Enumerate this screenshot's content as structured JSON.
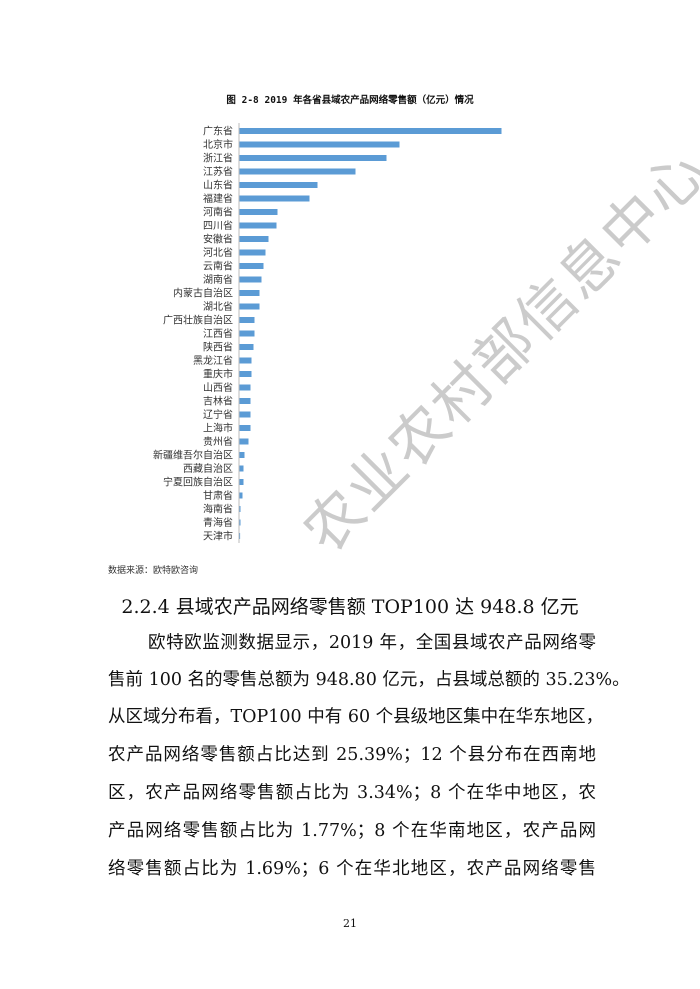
{
  "chart_data": {
    "type": "bar",
    "orientation": "horizontal",
    "title": "图 2-8 2019 年各省县域农产品网络零售额（亿元）情况",
    "categories": [
      "广东省",
      "北京市",
      "浙江省",
      "江苏省",
      "山东省",
      "福建省",
      "河南省",
      "四川省",
      "安徽省",
      "河北省",
      "云南省",
      "湖南省",
      "内蒙古自治区",
      "湖北省",
      "广西壮族自治区",
      "江西省",
      "陕西省",
      "黑龙江省",
      "重庆市",
      "山西省",
      "吉林省",
      "辽宁省",
      "上海市",
      "贵州省",
      "新疆维吾尔自治区",
      "西藏自治区",
      "宁夏回族自治区",
      "甘肃省",
      "海南省",
      "青海省",
      "天津市"
    ],
    "values": [
      262,
      160,
      147,
      116,
      78,
      70,
      38,
      37,
      29,
      26,
      24,
      22,
      20,
      20,
      15,
      15,
      14,
      12,
      12,
      11,
      11,
      11,
      11,
      9,
      5,
      4,
      4,
      3,
      1,
      1,
      0.3
    ],
    "grid": false,
    "bar_color": "#5B9BD5"
  },
  "source_note": "数据来源：欧特欧咨询",
  "heading": "2.2.4 县域农产品网络零售额 TOP100 达 948.8 亿元",
  "paragraph_lines": [
    "欧特欧监测数据显示，2019 年，全国县域农产品网络零",
    "售前 100 名的零售总额为 948.80 亿元，占县域总额的 35.23%。",
    "从区域分布看，TOP100 中有 60 个县级地区集中在华东地区，",
    "农产品网络零售额占比达到 25.39%；12 个县分布在西南地",
    "区，农产品网络零售额占比为 3.34%；8 个在华中地区，农",
    "产品网络零售额占比为 1.77%；8 个在华南地区，农产品网",
    "络零售额占比为 1.69%；6 个在华北地区，农产品网络零售"
  ],
  "page_number": "21",
  "watermark": "农业农村部信息中心"
}
